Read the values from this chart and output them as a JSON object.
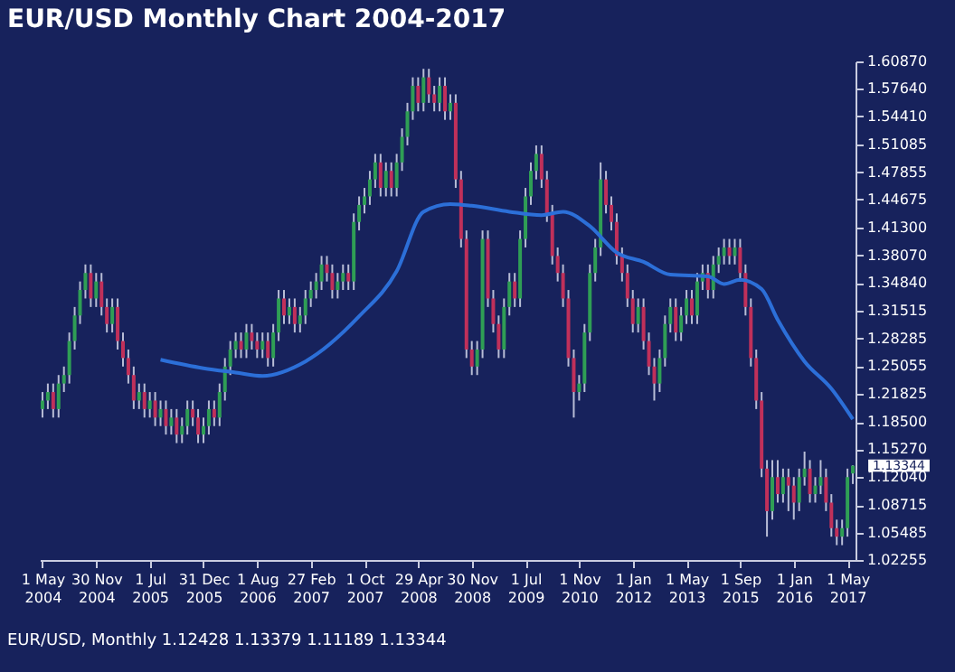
{
  "chart_data": {
    "type": "candlestick",
    "title": "EUR/USD Monthly Chart 2004-2017",
    "categories": [
      "1 May 2004",
      null,
      null,
      null,
      null,
      null,
      null,
      null,
      null,
      null,
      "30 Nov 2004",
      null,
      null,
      null,
      null,
      null,
      null,
      null,
      null,
      null,
      "1 Jul 2005",
      null,
      null,
      null,
      null,
      null,
      null,
      null,
      null,
      null,
      "31 Dec 2005",
      null,
      null,
      null,
      null,
      null,
      null,
      null,
      null,
      null,
      "1 Aug 2006",
      null,
      null,
      null,
      null,
      null,
      null,
      null,
      null,
      null,
      "27 Feb 2007",
      null,
      null,
      null,
      null,
      null,
      null,
      null,
      null,
      null,
      "1 Oct 2007",
      null,
      null,
      null,
      null,
      null,
      null,
      null,
      null,
      null,
      "29 Apr 2008",
      null,
      null,
      null,
      null,
      null,
      null,
      null,
      null,
      null,
      "30 Nov 2008",
      null,
      null,
      null,
      null,
      null,
      null,
      null,
      null,
      null,
      "1 Jul 2009",
      null,
      null,
      null,
      null,
      null,
      null,
      null,
      null,
      null,
      "1 Nov 2010",
      null,
      null,
      null,
      null,
      null,
      null,
      null,
      null,
      null,
      "1 Jan 2012",
      null,
      null,
      null,
      null,
      null,
      null,
      null,
      null,
      null,
      "1 May 2013",
      null,
      null,
      null,
      null,
      null,
      null,
      null,
      null,
      null,
      "1 Sep 2015",
      null,
      null,
      null,
      null,
      null,
      null,
      null,
      null,
      null,
      "1 Jan 2016",
      null,
      null,
      null,
      null,
      null,
      null,
      null,
      null,
      null,
      "1 May 2017",
      null
    ],
    "ohlc": [
      [
        1.2,
        1.22,
        1.19,
        1.21
      ],
      [
        1.21,
        1.23,
        1.2,
        1.22
      ],
      [
        1.22,
        1.23,
        1.19,
        1.2
      ],
      [
        1.2,
        1.24,
        1.19,
        1.23
      ],
      [
        1.23,
        1.25,
        1.22,
        1.24
      ],
      [
        1.24,
        1.29,
        1.23,
        1.28
      ],
      [
        1.28,
        1.32,
        1.27,
        1.31
      ],
      [
        1.31,
        1.35,
        1.3,
        1.34
      ],
      [
        1.34,
        1.37,
        1.33,
        1.36
      ],
      [
        1.36,
        1.37,
        1.32,
        1.33
      ],
      [
        1.33,
        1.36,
        1.32,
        1.35
      ],
      [
        1.35,
        1.36,
        1.31,
        1.32
      ],
      [
        1.32,
        1.33,
        1.29,
        1.3
      ],
      [
        1.3,
        1.33,
        1.29,
        1.32
      ],
      [
        1.32,
        1.33,
        1.27,
        1.28
      ],
      [
        1.28,
        1.29,
        1.25,
        1.26
      ],
      [
        1.26,
        1.27,
        1.23,
        1.24
      ],
      [
        1.24,
        1.25,
        1.2,
        1.21
      ],
      [
        1.21,
        1.23,
        1.2,
        1.22
      ],
      [
        1.22,
        1.23,
        1.19,
        1.2
      ],
      [
        1.2,
        1.22,
        1.19,
        1.21
      ],
      [
        1.21,
        1.22,
        1.18,
        1.19
      ],
      [
        1.19,
        1.21,
        1.18,
        1.2
      ],
      [
        1.2,
        1.21,
        1.17,
        1.18
      ],
      [
        1.18,
        1.2,
        1.17,
        1.19
      ],
      [
        1.19,
        1.2,
        1.16,
        1.17
      ],
      [
        1.17,
        1.19,
        1.16,
        1.18
      ],
      [
        1.18,
        1.21,
        1.17,
        1.2
      ],
      [
        1.2,
        1.21,
        1.18,
        1.19
      ],
      [
        1.19,
        1.2,
        1.16,
        1.17
      ],
      [
        1.17,
        1.19,
        1.16,
        1.18
      ],
      [
        1.18,
        1.21,
        1.17,
        1.2
      ],
      [
        1.2,
        1.21,
        1.18,
        1.19
      ],
      [
        1.19,
        1.23,
        1.18,
        1.22
      ],
      [
        1.22,
        1.26,
        1.21,
        1.25
      ],
      [
        1.25,
        1.28,
        1.24,
        1.27
      ],
      [
        1.27,
        1.29,
        1.26,
        1.28
      ],
      [
        1.28,
        1.29,
        1.26,
        1.27
      ],
      [
        1.27,
        1.3,
        1.26,
        1.29
      ],
      [
        1.29,
        1.3,
        1.27,
        1.28
      ],
      [
        1.28,
        1.29,
        1.26,
        1.27
      ],
      [
        1.27,
        1.29,
        1.26,
        1.28
      ],
      [
        1.28,
        1.29,
        1.25,
        1.26
      ],
      [
        1.26,
        1.3,
        1.25,
        1.29
      ],
      [
        1.29,
        1.34,
        1.28,
        1.33
      ],
      [
        1.33,
        1.34,
        1.3,
        1.31
      ],
      [
        1.31,
        1.33,
        1.3,
        1.32
      ],
      [
        1.32,
        1.33,
        1.29,
        1.3
      ],
      [
        1.3,
        1.32,
        1.29,
        1.31
      ],
      [
        1.31,
        1.34,
        1.3,
        1.33
      ],
      [
        1.33,
        1.35,
        1.32,
        1.34
      ],
      [
        1.34,
        1.36,
        1.33,
        1.35
      ],
      [
        1.35,
        1.38,
        1.34,
        1.37
      ],
      [
        1.37,
        1.38,
        1.35,
        1.36
      ],
      [
        1.36,
        1.37,
        1.33,
        1.34
      ],
      [
        1.34,
        1.36,
        1.33,
        1.35
      ],
      [
        1.35,
        1.37,
        1.34,
        1.36
      ],
      [
        1.36,
        1.37,
        1.34,
        1.35
      ],
      [
        1.35,
        1.43,
        1.34,
        1.42
      ],
      [
        1.42,
        1.45,
        1.41,
        1.44
      ],
      [
        1.44,
        1.46,
        1.43,
        1.45
      ],
      [
        1.45,
        1.48,
        1.44,
        1.47
      ],
      [
        1.47,
        1.5,
        1.46,
        1.49
      ],
      [
        1.49,
        1.5,
        1.45,
        1.46
      ],
      [
        1.46,
        1.49,
        1.45,
        1.48
      ],
      [
        1.48,
        1.49,
        1.45,
        1.46
      ],
      [
        1.46,
        1.5,
        1.45,
        1.49
      ],
      [
        1.49,
        1.53,
        1.48,
        1.52
      ],
      [
        1.52,
        1.56,
        1.51,
        1.55
      ],
      [
        1.55,
        1.59,
        1.54,
        1.58
      ],
      [
        1.58,
        1.59,
        1.55,
        1.56
      ],
      [
        1.56,
        1.6,
        1.55,
        1.59
      ],
      [
        1.59,
        1.6,
        1.56,
        1.57
      ],
      [
        1.57,
        1.58,
        1.55,
        1.56
      ],
      [
        1.56,
        1.59,
        1.55,
        1.58
      ],
      [
        1.58,
        1.59,
        1.54,
        1.55
      ],
      [
        1.55,
        1.57,
        1.54,
        1.56
      ],
      [
        1.56,
        1.57,
        1.46,
        1.47
      ],
      [
        1.47,
        1.48,
        1.39,
        1.4
      ],
      [
        1.4,
        1.41,
        1.26,
        1.27
      ],
      [
        1.27,
        1.28,
        1.24,
        1.25
      ],
      [
        1.25,
        1.28,
        1.24,
        1.27
      ],
      [
        1.27,
        1.41,
        1.26,
        1.4
      ],
      [
        1.4,
        1.41,
        1.32,
        1.33
      ],
      [
        1.33,
        1.34,
        1.29,
        1.3
      ],
      [
        1.3,
        1.31,
        1.26,
        1.27
      ],
      [
        1.27,
        1.33,
        1.26,
        1.32
      ],
      [
        1.32,
        1.36,
        1.31,
        1.35
      ],
      [
        1.35,
        1.36,
        1.32,
        1.33
      ],
      [
        1.33,
        1.41,
        1.32,
        1.4
      ],
      [
        1.4,
        1.46,
        1.39,
        1.45
      ],
      [
        1.45,
        1.49,
        1.44,
        1.48
      ],
      [
        1.48,
        1.51,
        1.47,
        1.5
      ],
      [
        1.5,
        1.51,
        1.46,
        1.47
      ],
      [
        1.47,
        1.48,
        1.42,
        1.43
      ],
      [
        1.43,
        1.44,
        1.37,
        1.38
      ],
      [
        1.38,
        1.39,
        1.35,
        1.36
      ],
      [
        1.36,
        1.37,
        1.32,
        1.33
      ],
      [
        1.33,
        1.34,
        1.25,
        1.26
      ],
      [
        1.26,
        1.27,
        1.19,
        1.22
      ],
      [
        1.22,
        1.24,
        1.21,
        1.23
      ],
      [
        1.23,
        1.3,
        1.22,
        1.29
      ],
      [
        1.29,
        1.37,
        1.28,
        1.36
      ],
      [
        1.36,
        1.4,
        1.35,
        1.39
      ],
      [
        1.39,
        1.49,
        1.38,
        1.47
      ],
      [
        1.47,
        1.48,
        1.43,
        1.44
      ],
      [
        1.44,
        1.45,
        1.41,
        1.42
      ],
      [
        1.42,
        1.43,
        1.37,
        1.38
      ],
      [
        1.38,
        1.39,
        1.35,
        1.36
      ],
      [
        1.36,
        1.37,
        1.32,
        1.33
      ],
      [
        1.33,
        1.34,
        1.29,
        1.3
      ],
      [
        1.3,
        1.33,
        1.29,
        1.32
      ],
      [
        1.32,
        1.33,
        1.27,
        1.28
      ],
      [
        1.28,
        1.29,
        1.24,
        1.25
      ],
      [
        1.25,
        1.26,
        1.21,
        1.23
      ],
      [
        1.23,
        1.27,
        1.22,
        1.26
      ],
      [
        1.26,
        1.31,
        1.25,
        1.3
      ],
      [
        1.3,
        1.33,
        1.29,
        1.32
      ],
      [
        1.32,
        1.33,
        1.28,
        1.29
      ],
      [
        1.29,
        1.32,
        1.28,
        1.31
      ],
      [
        1.31,
        1.34,
        1.3,
        1.33
      ],
      [
        1.33,
        1.34,
        1.3,
        1.31
      ],
      [
        1.31,
        1.36,
        1.3,
        1.35
      ],
      [
        1.35,
        1.37,
        1.34,
        1.36
      ],
      [
        1.36,
        1.37,
        1.33,
        1.34
      ],
      [
        1.34,
        1.38,
        1.33,
        1.37
      ],
      [
        1.37,
        1.39,
        1.36,
        1.38
      ],
      [
        1.38,
        1.4,
        1.37,
        1.39
      ],
      [
        1.39,
        1.4,
        1.37,
        1.38
      ],
      [
        1.38,
        1.4,
        1.37,
        1.39
      ],
      [
        1.39,
        1.4,
        1.35,
        1.36
      ],
      [
        1.36,
        1.37,
        1.31,
        1.32
      ],
      [
        1.32,
        1.33,
        1.25,
        1.26
      ],
      [
        1.26,
        1.27,
        1.2,
        1.21
      ],
      [
        1.21,
        1.22,
        1.12,
        1.13
      ],
      [
        1.13,
        1.14,
        1.05,
        1.08
      ],
      [
        1.08,
        1.14,
        1.07,
        1.12
      ],
      [
        1.12,
        1.14,
        1.09,
        1.1
      ],
      [
        1.1,
        1.13,
        1.09,
        1.12
      ],
      [
        1.12,
        1.13,
        1.08,
        1.11
      ],
      [
        1.11,
        1.12,
        1.07,
        1.09
      ],
      [
        1.09,
        1.13,
        1.08,
        1.12
      ],
      [
        1.12,
        1.15,
        1.11,
        1.13
      ],
      [
        1.13,
        1.14,
        1.09,
        1.1
      ],
      [
        1.1,
        1.12,
        1.09,
        1.11
      ],
      [
        1.11,
        1.14,
        1.1,
        1.12
      ],
      [
        1.12,
        1.13,
        1.08,
        1.09
      ],
      [
        1.09,
        1.1,
        1.05,
        1.06
      ],
      [
        1.06,
        1.07,
        1.04,
        1.05
      ],
      [
        1.05,
        1.07,
        1.04,
        1.06
      ],
      [
        1.06,
        1.13,
        1.05,
        1.12
      ],
      [
        1.12428,
        1.13379,
        1.11189,
        1.13344
      ]
    ],
    "series": [
      {
        "type": "line",
        "color": "#2c6fd8",
        "values": [
          null,
          null,
          null,
          null,
          null,
          null,
          null,
          null,
          null,
          null,
          null,
          null,
          null,
          null,
          null,
          null,
          null,
          null,
          null,
          null,
          null,
          null,
          1.258,
          null,
          null,
          null,
          null,
          null,
          null,
          null,
          1.248,
          null,
          null,
          null,
          null,
          null,
          1.243,
          null,
          null,
          null,
          null,
          1.239,
          null,
          null,
          null,
          null,
          null,
          null,
          null,
          1.256,
          null,
          null,
          null,
          null,
          null,
          null,
          null,
          null,
          null,
          1.309,
          null,
          null,
          null,
          null,
          null,
          null,
          1.362,
          null,
          null,
          null,
          null,
          1.432,
          null,
          null,
          null,
          null,
          1.441,
          null,
          null,
          null,
          1.439,
          null,
          null,
          null,
          null,
          null,
          null,
          1.432,
          null,
          null,
          null,
          null,
          null,
          1.428,
          null,
          null,
          null,
          1.432,
          null,
          null,
          null,
          null,
          1.415,
          null,
          null,
          null,
          null,
          1.384,
          null,
          null,
          null,
          null,
          1.373,
          null,
          null,
          null,
          null,
          1.358,
          null,
          null,
          null,
          null,
          null,
          null,
          1.356,
          null,
          null,
          1.347,
          null,
          null,
          1.352,
          null,
          null,
          null,
          1.341,
          null,
          null,
          1.305,
          null,
          null,
          null,
          null,
          1.256,
          null,
          null,
          null,
          null,
          1.224,
          null,
          null,
          null,
          1.188
        ]
      }
    ],
    "ylim": [
      1.02255,
      1.6087
    ],
    "yticks": [
      {
        "value": 1.02255,
        "label": "1.02255"
      },
      {
        "value": 1.05485,
        "label": "1.05485"
      },
      {
        "value": 1.08715,
        "label": "1.08715"
      },
      {
        "value": 1.1204,
        "label": "1.12040"
      },
      {
        "value": 1.1527,
        "label": "1.15270"
      },
      {
        "value": 1.185,
        "label": "1.18500"
      },
      {
        "value": 1.21825,
        "label": "1.21825"
      },
      {
        "value": 1.25055,
        "label": "1.25055"
      },
      {
        "value": 1.28285,
        "label": "1.28285"
      },
      {
        "value": 1.31515,
        "label": "1.31515"
      },
      {
        "value": 1.3484,
        "label": "1.34840"
      },
      {
        "value": 1.3807,
        "label": "1.38070"
      },
      {
        "value": 1.413,
        "label": "1.41300"
      },
      {
        "value": 1.44675,
        "label": "1.44675"
      },
      {
        "value": 1.47855,
        "label": "1.47855"
      },
      {
        "value": 1.51085,
        "label": "1.51085"
      },
      {
        "value": 1.5441,
        "label": "1.54410"
      },
      {
        "value": 1.5764,
        "label": "1.57640"
      },
      {
        "value": 1.6087,
        "label": "1.60870"
      }
    ],
    "annotations": [
      "EUR/USD, Monthly 1.12428 1.13379 1.11189 1.13344",
      "1.13344"
    ],
    "grid": false
  }
}
